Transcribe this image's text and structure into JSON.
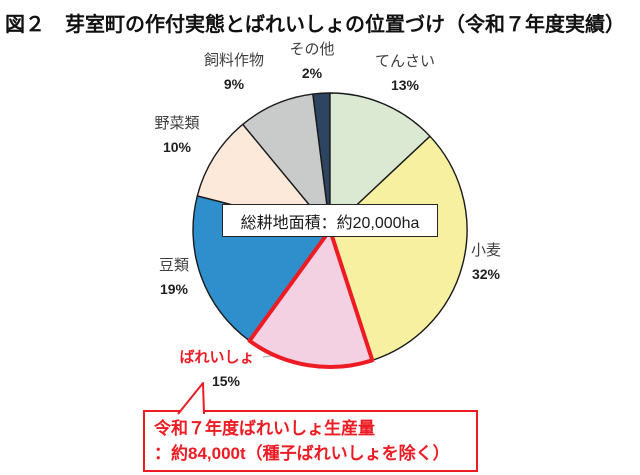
{
  "title": "図２　芽室町の作付実態とばれいしょの位置づけ（令和７年度実績）",
  "center_box": {
    "text": "総耕地面積：約20,000ha"
  },
  "callout": {
    "line1": "令和７年度ばれいしょ生産量",
    "line2": "：約84,000t（種子ばれいしょを除く）",
    "border_color": "#ed1c24",
    "text_color": "#ed1c24"
  },
  "chart_data": {
    "type": "pie",
    "title": "芽室町の作付実態とばれいしょの位置づけ（令和７年度実績）",
    "units": "%",
    "total": 100,
    "start_angle_deg": 0,
    "direction": "clockwise",
    "outline_color": "#1a1a1a",
    "highlight_outline_color": "#ed1c24",
    "slices": [
      {
        "name_en": "tensai",
        "label": "てんさい",
        "value": 13,
        "percent_label": "13%",
        "color": "#dbe9d3",
        "highlight": false
      },
      {
        "name_en": "komugi",
        "label": "小麦",
        "value": 32,
        "percent_label": "32%",
        "color": "#f7f0a1",
        "highlight": false
      },
      {
        "name_en": "bareisho",
        "label": "ばれいしょ",
        "value": 15,
        "percent_label": "15%",
        "color": "#f3d1e3",
        "highlight": true,
        "highlight_color": "#ed1c24"
      },
      {
        "name_en": "mamerui",
        "label": "豆類",
        "value": 19,
        "percent_label": "19%",
        "color": "#2e8fcc",
        "highlight": false
      },
      {
        "name_en": "yasairui",
        "label": "野菜類",
        "value": 10,
        "percent_label": "10%",
        "color": "#fce9d9",
        "highlight": false
      },
      {
        "name_en": "shiryo-sakumotsu",
        "label": "飼料作物",
        "value": 9,
        "percent_label": "9%",
        "color": "#c9caca",
        "highlight": false
      },
      {
        "name_en": "sonota",
        "label": "その他",
        "value": 2,
        "percent_label": "2%",
        "color": "#2d4560",
        "highlight": false
      }
    ],
    "annotations": [
      "総耕地面積：約20,000ha",
      "令和７年度ばれいしょ生産量：約84,000t（種子ばれいしょを除く）"
    ]
  }
}
